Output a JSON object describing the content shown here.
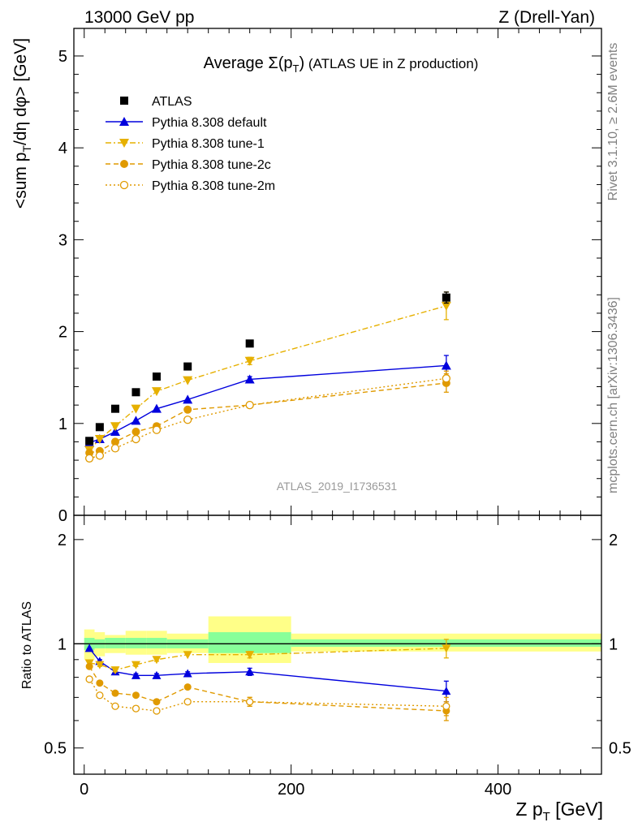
{
  "header": {
    "left": "13000 GeV pp",
    "right": "Z (Drell-Yan)"
  },
  "side_text": {
    "rivet": "Rivet 3.1.10, ≥ 2.6M events",
    "mcplots": "mcplots.cern.ch [arXiv:1306.3436]"
  },
  "colors": {
    "atlas": "#000000",
    "default": "#0000dd",
    "tune1": "#e6b000",
    "tune2c": "#e09a00",
    "tune2m": "#e09a00",
    "band_inner": "#88ff99",
    "band_outer": "#ffff88"
  },
  "chart_data": [
    {
      "type": "scatter",
      "title_prefix": "Average",
      "title_symbol": "Σ(p",
      "title_sub": "T",
      "title_close": ")",
      "title_suffix": "(ATLAS UE in Z production)",
      "ylabel_main": "<sum p",
      "ylabel_sub": "T",
      "ylabel_rest": "/dη dφ> [GeV]",
      "ylim": [
        0,
        5.3
      ],
      "yticks": [
        "0",
        "1",
        "2",
        "3",
        "4",
        "5"
      ],
      "watermark": "ATLAS_2019_I1736531",
      "x": [
        5,
        15,
        30,
        50,
        70,
        100,
        160,
        350
      ],
      "series": [
        {
          "name": "ATLAS",
          "key": "atlas",
          "values": [
            0.81,
            0.96,
            1.16,
            1.34,
            1.51,
            1.62,
            1.87,
            2.37
          ],
          "errors": [
            0.02,
            0.02,
            0.02,
            0.02,
            0.02,
            0.02,
            0.03,
            0.06
          ]
        },
        {
          "name": "Pythia 8.308 default",
          "key": "default",
          "values": [
            0.79,
            0.83,
            0.91,
            1.03,
            1.16,
            1.26,
            1.48,
            1.63
          ],
          "errors": [
            0.01,
            0.01,
            0.01,
            0.01,
            0.01,
            0.01,
            0.03,
            0.11
          ]
        },
        {
          "name": "Pythia 8.308 tune-1",
          "key": "tune1",
          "values": [
            0.71,
            0.83,
            0.97,
            1.16,
            1.35,
            1.47,
            1.68,
            2.28
          ],
          "errors": [
            0.01,
            0.01,
            0.01,
            0.01,
            0.01,
            0.01,
            0.04,
            0.15
          ]
        },
        {
          "name": "Pythia 8.308 tune-2c",
          "key": "tune2c",
          "values": [
            0.68,
            0.7,
            0.8,
            0.91,
            0.97,
            1.15,
            1.2,
            1.44
          ],
          "errors": [
            0.01,
            0.01,
            0.01,
            0.01,
            0.01,
            0.01,
            0.03,
            0.1
          ]
        },
        {
          "name": "Pythia 8.308 tune-2m",
          "key": "tune2m",
          "values": [
            0.62,
            0.65,
            0.73,
            0.83,
            0.93,
            1.04,
            1.2,
            1.49
          ],
          "errors": [
            0.01,
            0.01,
            0.01,
            0.01,
            0.01,
            0.01,
            0.03,
            0.08
          ]
        }
      ]
    },
    {
      "type": "scatter",
      "ylabel": "Ratio to ATLAS",
      "xlabel_main": "Z p",
      "xlabel_sub": "T",
      "xlabel_rest": " [GeV]",
      "xlim": [
        -10,
        500
      ],
      "ylim": [
        0.42,
        2.35
      ],
      "xticks": [
        "0",
        "200",
        "400"
      ],
      "yticks": [
        "0.5",
        "1",
        "2"
      ],
      "bands": [
        {
          "x": [
            0,
            10
          ],
          "inner": [
            0.96,
            1.04
          ],
          "outer": [
            0.9,
            1.1
          ]
        },
        {
          "x": [
            10,
            20
          ],
          "inner": [
            0.97,
            1.03
          ],
          "outer": [
            0.92,
            1.08
          ]
        },
        {
          "x": [
            20,
            40
          ],
          "inner": [
            0.97,
            1.04
          ],
          "outer": [
            0.94,
            1.06
          ]
        },
        {
          "x": [
            40,
            60
          ],
          "inner": [
            0.97,
            1.04
          ],
          "outer": [
            0.93,
            1.09
          ]
        },
        {
          "x": [
            60,
            80
          ],
          "inner": [
            0.97,
            1.04
          ],
          "outer": [
            0.93,
            1.09
          ]
        },
        {
          "x": [
            80,
            120
          ],
          "inner": [
            0.97,
            1.03
          ],
          "outer": [
            0.94,
            1.07
          ]
        },
        {
          "x": [
            120,
            200
          ],
          "inner": [
            0.94,
            1.08
          ],
          "outer": [
            0.88,
            1.2
          ]
        },
        {
          "x": [
            200,
            500
          ],
          "inner": [
            0.98,
            1.03
          ],
          "outer": [
            0.95,
            1.07
          ]
        }
      ],
      "x": [
        5,
        15,
        30,
        50,
        70,
        100,
        160,
        350
      ],
      "series": [
        {
          "key": "default",
          "values": [
            0.97,
            0.89,
            0.83,
            0.81,
            0.81,
            0.82,
            0.83,
            0.73
          ],
          "errors": [
            0.01,
            0.01,
            0.01,
            0.01,
            0.01,
            0.01,
            0.02,
            0.05
          ]
        },
        {
          "key": "tune1",
          "values": [
            0.88,
            0.87,
            0.84,
            0.87,
            0.9,
            0.93,
            0.93,
            0.97
          ],
          "errors": [
            0.01,
            0.01,
            0.01,
            0.01,
            0.01,
            0.01,
            0.02,
            0.06
          ]
        },
        {
          "key": "tune2c",
          "values": [
            0.86,
            0.77,
            0.72,
            0.71,
            0.68,
            0.75,
            0.68,
            0.64
          ],
          "errors": [
            0.01,
            0.01,
            0.01,
            0.01,
            0.01,
            0.01,
            0.02,
            0.04
          ]
        },
        {
          "key": "tune2m",
          "values": [
            0.79,
            0.71,
            0.66,
            0.65,
            0.64,
            0.68,
            0.68,
            0.66
          ],
          "errors": [
            0.01,
            0.01,
            0.01,
            0.01,
            0.01,
            0.01,
            0.02,
            0.04
          ]
        }
      ]
    }
  ]
}
